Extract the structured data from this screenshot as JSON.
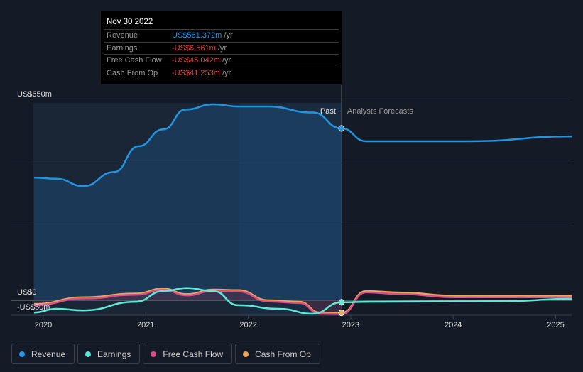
{
  "chart_data": {
    "type": "line",
    "y_unit": "US$m",
    "ylim": [
      -50,
      650
    ],
    "ytick_labels": [
      "US$650m",
      "US$0",
      "-US$50m"
    ],
    "xtick_labels": [
      "2020",
      "2021",
      "2022",
      "2023",
      "2024",
      "2025"
    ],
    "xlim": [
      2019.9,
      2025.16
    ],
    "divider_year": 2022.91,
    "past_label": "Past",
    "forecast_label": "Analysts Forecasts",
    "series": [
      {
        "name": "Revenue",
        "color": "#2394e0",
        "points": [
          [
            2019.91,
            402
          ],
          [
            2020.13,
            398
          ],
          [
            2020.39,
            374
          ],
          [
            2020.69,
            420
          ],
          [
            2020.93,
            505
          ],
          [
            2021.17,
            560
          ],
          [
            2021.39,
            625
          ],
          [
            2021.66,
            642
          ],
          [
            2021.9,
            635
          ],
          [
            2022.18,
            635
          ],
          [
            2022.63,
            615
          ],
          [
            2022.91,
            563
          ],
          [
            2023.15,
            521
          ],
          [
            2024.15,
            521
          ],
          [
            2025.16,
            537
          ]
        ]
      },
      {
        "name": "Earnings",
        "color": "#5ee8d6",
        "points": [
          [
            2019.91,
            -40
          ],
          [
            2020.13,
            -28
          ],
          [
            2020.39,
            -33
          ],
          [
            2020.9,
            -5
          ],
          [
            2021.17,
            30
          ],
          [
            2021.4,
            40
          ],
          [
            2021.66,
            30
          ],
          [
            2021.9,
            -16
          ],
          [
            2022.3,
            -28
          ],
          [
            2022.63,
            -44
          ],
          [
            2022.91,
            -6.5
          ],
          [
            2023.15,
            -5
          ],
          [
            2024.5,
            -3
          ],
          [
            2025.16,
            5
          ]
        ]
      },
      {
        "name": "Free Cash Flow",
        "color": "#d94f8c",
        "points": [
          [
            2019.91,
            -16
          ],
          [
            2020.4,
            6
          ],
          [
            2020.9,
            18
          ],
          [
            2021.17,
            34
          ],
          [
            2021.4,
            16
          ],
          [
            2021.66,
            31
          ],
          [
            2021.9,
            29
          ],
          [
            2022.2,
            -4
          ],
          [
            2022.5,
            -9
          ],
          [
            2022.7,
            -44
          ],
          [
            2022.91,
            -45
          ],
          [
            2023.15,
            26
          ],
          [
            2023.5,
            20
          ],
          [
            2024,
            10
          ],
          [
            2025.16,
            10
          ]
        ]
      },
      {
        "name": "Cash From Op",
        "color": "#e8a85a",
        "points": [
          [
            2019.91,
            -12
          ],
          [
            2020.4,
            10
          ],
          [
            2020.9,
            22
          ],
          [
            2021.17,
            38
          ],
          [
            2021.4,
            20
          ],
          [
            2021.66,
            35
          ],
          [
            2021.9,
            33
          ],
          [
            2022.2,
            0
          ],
          [
            2022.5,
            -5
          ],
          [
            2022.7,
            -40
          ],
          [
            2022.91,
            -41
          ],
          [
            2023.15,
            30
          ],
          [
            2023.5,
            25
          ],
          [
            2024,
            15
          ],
          [
            2025.16,
            15
          ]
        ]
      }
    ]
  },
  "tooltip": {
    "date": "Nov 30 2022",
    "rows": [
      {
        "label": "Revenue",
        "value": "US$561.372m",
        "unit": "/yr",
        "color": "#2394e0"
      },
      {
        "label": "Earnings",
        "value": "-US$6.561m",
        "unit": "/yr",
        "color": "#e84040"
      },
      {
        "label": "Free Cash Flow",
        "value": "-US$45.042m",
        "unit": "/yr",
        "color": "#e84040"
      },
      {
        "label": "Cash From Op",
        "value": "-US$41.253m",
        "unit": "/yr",
        "color": "#e84040"
      }
    ]
  },
  "legend": [
    "Revenue",
    "Earnings",
    "Free Cash Flow",
    "Cash From Op"
  ]
}
